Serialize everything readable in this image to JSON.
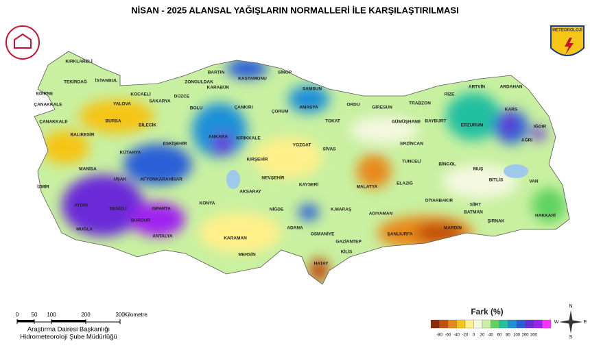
{
  "title": "NİSAN - 2025 ALANSAL YAĞIŞLARIN NORMALLERİ İLE KARŞILAŞTIRILMASI",
  "logo_text": "METEOROLOJİ",
  "cities": [
    "KIRKLARELİ",
    "TEKİRDAĞ",
    "İSTANBUL",
    "EDİRNE",
    "ÇANAKKALE",
    "KOCAELİ",
    "SAKARYA",
    "ZONGULDAK",
    "BARTIN",
    "KARABÜK",
    "KASTAMONU",
    "SİNOP",
    "SAMSUN",
    "DÜZCE",
    "YALOVA",
    "BURSA",
    "BOLU",
    "ÇANKIRI",
    "ÇORUM",
    "AMASYA",
    "ORDU",
    "GİRESUN",
    "TRABZON",
    "RİZE",
    "ARTVİN",
    "ARDAHAN",
    "KARS",
    "IĞDIR",
    "AĞRI",
    "ERZURUM",
    "BAYBURT",
    "GÜMÜŞHANE",
    "TOKAT",
    "ÇANAKKALE",
    "BALIKESİR",
    "BİLECİK",
    "ESKİŞEHİR",
    "ANKARA",
    "KIRIKKALE",
    "YOZGAT",
    "SİVAS",
    "ERZİNCAN",
    "KÜTAHYA",
    "TUNCELİ",
    "BİNGÖL",
    "MUŞ",
    "BİTLİS",
    "VAN",
    "MANİSA",
    "KIRŞEHİR",
    "NEVŞEHİR",
    "UŞAK",
    "AFYONKARAHİSAR",
    "KAYSERİ",
    "MALATYA",
    "ELAZIĞ",
    "İZMİR",
    "AKSARAY",
    "DİYARBAKIR",
    "SİİRT",
    "AYDIN",
    "DENİZLİ",
    "KONYA",
    "NİĞDE",
    "K.MARAŞ",
    "ADIYAMAN",
    "BATMAN",
    "ŞIRNAK",
    "HAKKARİ",
    "MUĞLA",
    "BURDUR",
    "ISPARTA",
    "ANTALYA",
    "KARAMAN",
    "ADANA",
    "OSMANİYE",
    "ŞANLIURFA",
    "MARDİN",
    "GAZİANTEP",
    "KİLİS",
    "MERSİN",
    "HATAY"
  ],
  "scale_bar": {
    "labels": [
      "0",
      "50",
      "100",
      "200",
      "300"
    ],
    "unit": "Kilometre"
  },
  "credits": [
    "Araştırma Dairesi Başkanlığı",
    "Hidrometeoroloji Şube Müdürlüğü"
  ],
  "compass": [
    "N",
    "E",
    "S",
    "W"
  ],
  "legend": {
    "title": "Fark (%)",
    "labels": [
      "-80",
      "-60",
      "-40",
      "-20",
      "0",
      "20",
      "40",
      "60",
      "80",
      "100",
      "200",
      "300"
    ],
    "colors": [
      "#8b2a0a",
      "#c0500c",
      "#e88a1a",
      "#f5c518",
      "#fff08a",
      "#f4f8e0",
      "#c8f0a0",
      "#5fd35f",
      "#20c0a0",
      "#1e90d8",
      "#2b5fd8",
      "#6a2bd8",
      "#a020f0",
      "#ff30ff"
    ]
  }
}
